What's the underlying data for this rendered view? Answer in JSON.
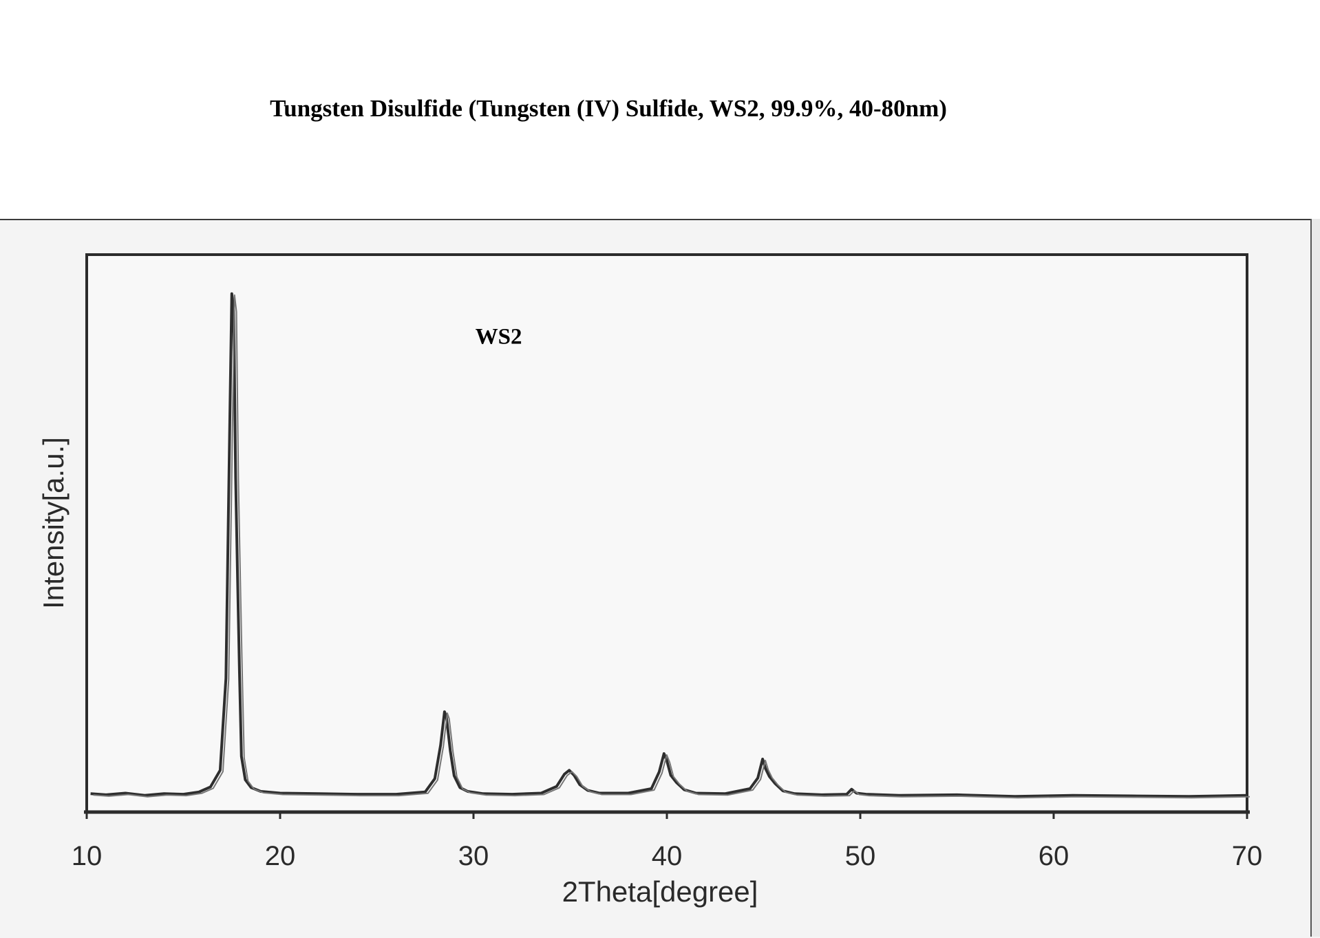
{
  "page_title": "Tungsten Disulfide (Tungsten (IV) Sulfide, WS2, 99.9%, 40-80nm)",
  "chart_data": {
    "type": "line",
    "title": "Tungsten Disulfide (Tungsten (IV) Sulfide, WS2, 99.9%, 40-80nm)",
    "xlabel": "2Theta[degree]",
    "ylabel": "Intensity[a.u.]",
    "xlim": [
      10,
      70
    ],
    "ylim": [
      0,
      100
    ],
    "x_ticks": [
      10,
      20,
      30,
      40,
      50,
      60,
      70
    ],
    "x_tick_labels": [
      "10",
      "20",
      "30",
      "40",
      "50",
      "60",
      "70"
    ],
    "grid": false,
    "legend": "none",
    "annotations": [
      {
        "text": "WS2",
        "x": 31.3,
        "y": 84
      }
    ],
    "series": [
      {
        "color": "#2e2e2e",
        "x": [
          10.2,
          11,
          12,
          13,
          14,
          15,
          15.8,
          16.4,
          16.9,
          17.2,
          17.4,
          17.5,
          17.6,
          17.7,
          17.8,
          17.9,
          18.0,
          18.2,
          18.5,
          19.0,
          20,
          22,
          24,
          26,
          27.5,
          28.0,
          28.3,
          28.5,
          28.6,
          28.8,
          29.0,
          29.3,
          29.7,
          30.5,
          32,
          33.5,
          34.3,
          34.7,
          34.95,
          35.2,
          35.5,
          35.9,
          36.5,
          38,
          39.2,
          39.6,
          39.85,
          40.0,
          40.2,
          40.5,
          40.9,
          41.5,
          43,
          44.3,
          44.7,
          44.95,
          45.1,
          45.3,
          45.6,
          46.0,
          46.6,
          48,
          49.3,
          49.55,
          49.8,
          50.3,
          52,
          55,
          58,
          61,
          64,
          67,
          70
        ],
        "y": [
          3.3,
          3.1,
          3.4,
          3.0,
          3.3,
          3.2,
          3.6,
          4.5,
          7.5,
          24,
          70,
          93,
          90,
          60,
          42,
          25,
          10,
          5.8,
          4.4,
          3.7,
          3.4,
          3.3,
          3.2,
          3.2,
          3.6,
          6.0,
          12,
          18,
          17,
          11,
          6.5,
          4.4,
          3.7,
          3.3,
          3.2,
          3.4,
          4.6,
          6.8,
          7.5,
          6.6,
          4.9,
          3.9,
          3.4,
          3.4,
          4.2,
          7.2,
          10.5,
          9.2,
          6.6,
          5.3,
          4.0,
          3.4,
          3.3,
          4.2,
          6.1,
          9.5,
          7.8,
          6.4,
          5.1,
          3.8,
          3.3,
          3.1,
          3.2,
          4.1,
          3.4,
          3.2,
          3.0,
          3.1,
          2.8,
          3.0,
          2.9,
          2.8,
          3.0
        ]
      }
    ]
  }
}
